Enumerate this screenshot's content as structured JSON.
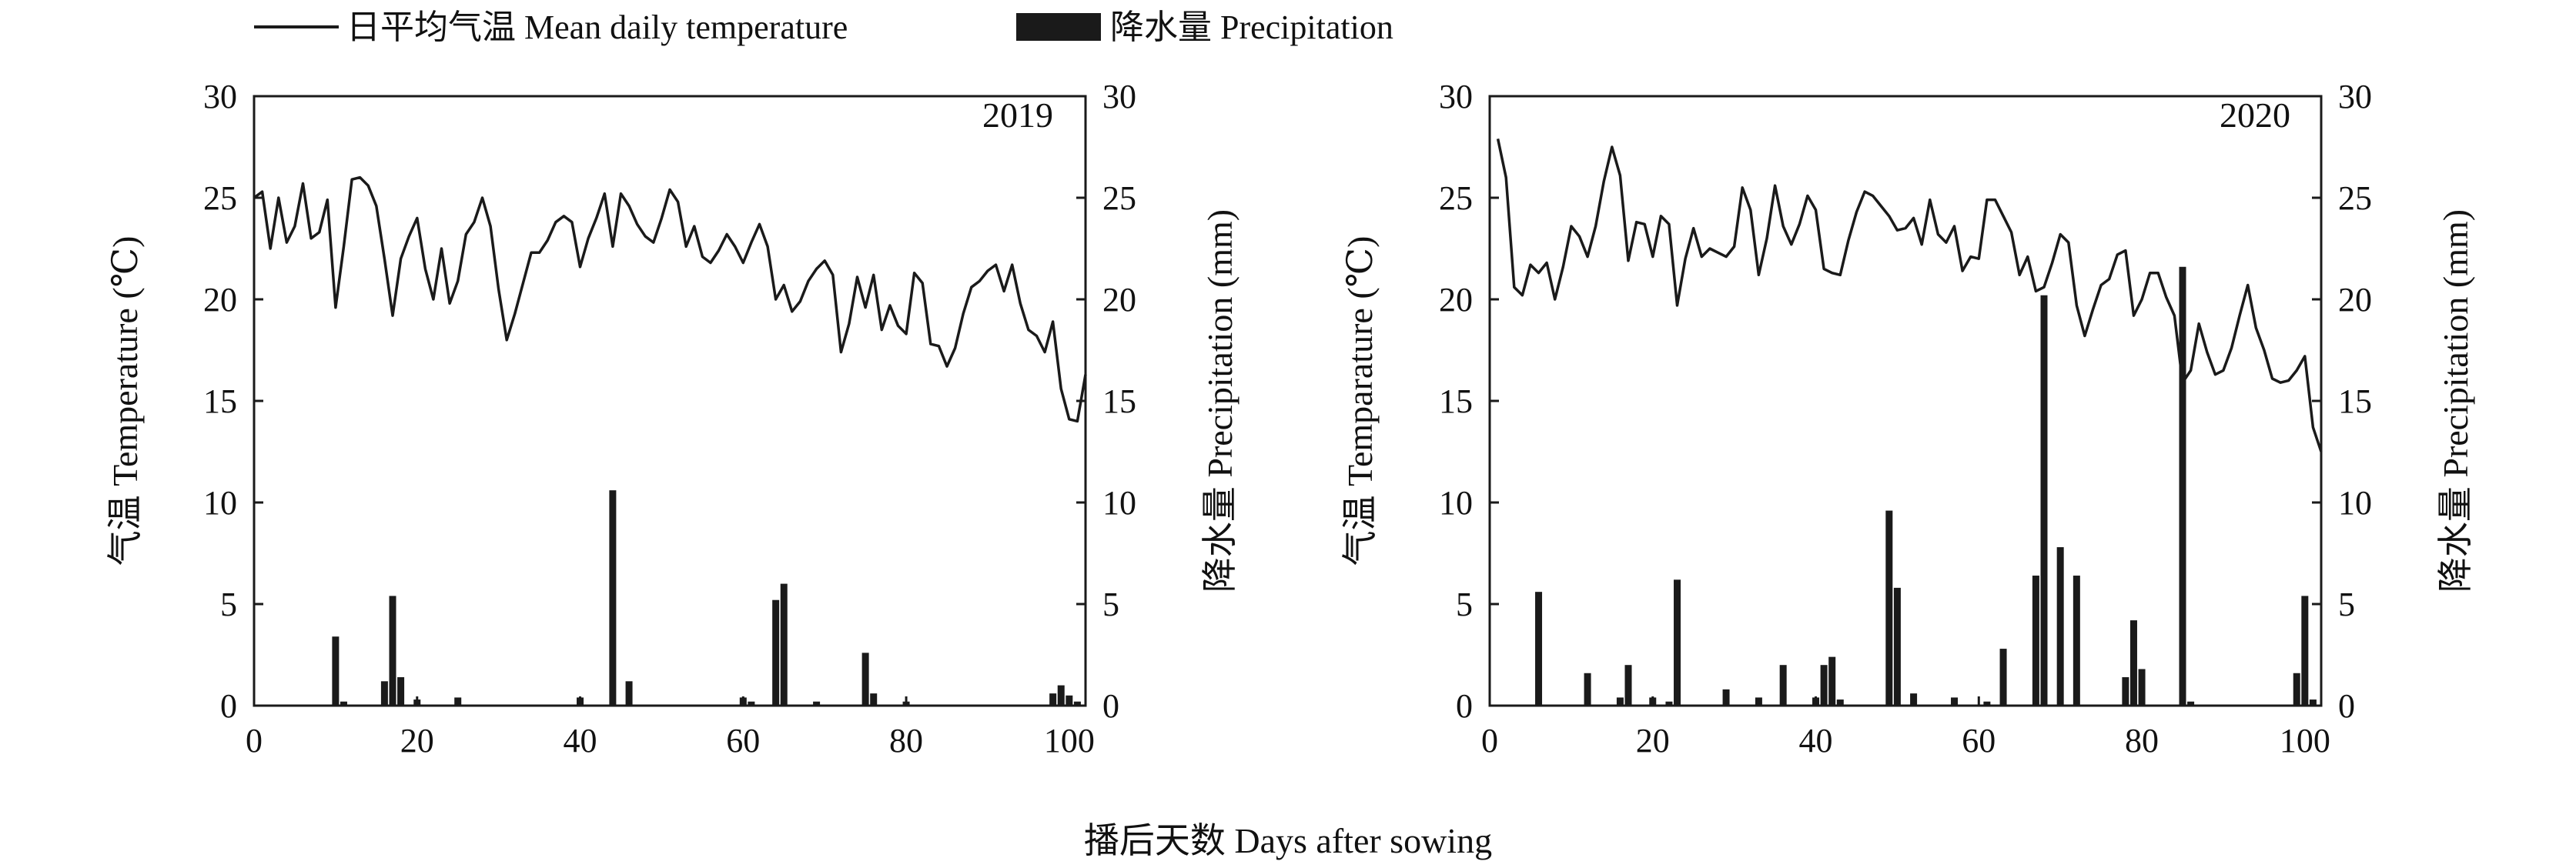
{
  "legend": {
    "temperature_label": "日平均气温 Mean daily temperature",
    "precipitation_label": "降水量 Precipitation"
  },
  "xlabel": "播后天数 Days after sowing",
  "colors": {
    "line": "#1a1a1a",
    "bar": "#1a1a1a",
    "axis": "#1a1a1a"
  },
  "chart_data": [
    {
      "type": "line",
      "title": "2019",
      "ylabel_left": "气温 Temperature (℃)",
      "ylabel_right": "降水量 Precipitation (mm)",
      "xlim": [
        0,
        102
      ],
      "ylim": [
        0,
        30
      ],
      "xticks": [
        0,
        20,
        40,
        60,
        80,
        100
      ],
      "yticks": [
        0,
        5,
        10,
        15,
        20,
        25,
        30
      ],
      "series": [
        {
          "name": "日平均气温 Mean daily temperature",
          "type": "line",
          "axis": "left",
          "points": [
            [
              0,
              25.0
            ],
            [
              1,
              25.3
            ],
            [
              2,
              22.5
            ],
            [
              3,
              25.0
            ],
            [
              4,
              22.8
            ],
            [
              5,
              23.6
            ],
            [
              6,
              25.7
            ],
            [
              7,
              23.0
            ],
            [
              8,
              23.3
            ],
            [
              9,
              24.9
            ],
            [
              10,
              19.6
            ],
            [
              11,
              22.6
            ],
            [
              12,
              25.9
            ],
            [
              13,
              26.0
            ],
            [
              14,
              25.6
            ],
            [
              15,
              24.6
            ],
            [
              16,
              22.0
            ],
            [
              17,
              19.2
            ],
            [
              18,
              22.0
            ],
            [
              19,
              23.1
            ],
            [
              20,
              24.0
            ],
            [
              21,
              21.5
            ],
            [
              22,
              20.0
            ],
            [
              23,
              22.5
            ],
            [
              24,
              19.8
            ],
            [
              25,
              20.9
            ],
            [
              26,
              23.2
            ],
            [
              27,
              23.8
            ],
            [
              28,
              25.0
            ],
            [
              29,
              23.6
            ],
            [
              30,
              20.5
            ],
            [
              31,
              18.0
            ],
            [
              32,
              19.3
            ],
            [
              33,
              20.8
            ],
            [
              34,
              22.3
            ],
            [
              35,
              22.3
            ],
            [
              36,
              22.9
            ],
            [
              37,
              23.8
            ],
            [
              38,
              24.1
            ],
            [
              39,
              23.8
            ],
            [
              40,
              21.6
            ],
            [
              41,
              23.0
            ],
            [
              42,
              24.0
            ],
            [
              43,
              25.2
            ],
            [
              44,
              22.6
            ],
            [
              45,
              25.2
            ],
            [
              46,
              24.6
            ],
            [
              47,
              23.7
            ],
            [
              48,
              23.1
            ],
            [
              49,
              22.8
            ],
            [
              50,
              24.0
            ],
            [
              51,
              25.4
            ],
            [
              52,
              24.8
            ],
            [
              53,
              22.6
            ],
            [
              54,
              23.6
            ],
            [
              55,
              22.1
            ],
            [
              56,
              21.8
            ],
            [
              57,
              22.4
            ],
            [
              58,
              23.2
            ],
            [
              59,
              22.6
            ],
            [
              60,
              21.8
            ],
            [
              61,
              22.8
            ],
            [
              62,
              23.7
            ],
            [
              63,
              22.6
            ],
            [
              64,
              20.0
            ],
            [
              65,
              20.7
            ],
            [
              66,
              19.4
            ],
            [
              67,
              19.9
            ],
            [
              68,
              20.9
            ],
            [
              69,
              21.5
            ],
            [
              70,
              21.9
            ],
            [
              71,
              21.2
            ],
            [
              72,
              17.4
            ],
            [
              73,
              18.8
            ],
            [
              74,
              21.1
            ],
            [
              75,
              19.6
            ],
            [
              76,
              21.2
            ],
            [
              77,
              18.5
            ],
            [
              78,
              19.7
            ],
            [
              79,
              18.7
            ],
            [
              80,
              18.3
            ],
            [
              81,
              21.3
            ],
            [
              82,
              20.8
            ],
            [
              83,
              17.8
            ],
            [
              84,
              17.7
            ],
            [
              85,
              16.7
            ],
            [
              86,
              17.6
            ],
            [
              87,
              19.3
            ],
            [
              88,
              20.6
            ],
            [
              89,
              20.9
            ],
            [
              90,
              21.4
            ],
            [
              91,
              21.7
            ],
            [
              92,
              20.4
            ],
            [
              93,
              21.7
            ],
            [
              94,
              19.8
            ],
            [
              95,
              18.5
            ],
            [
              96,
              18.2
            ],
            [
              97,
              17.4
            ],
            [
              98,
              18.9
            ],
            [
              99,
              15.6
            ],
            [
              100,
              14.1
            ],
            [
              101,
              14.0
            ],
            [
              102,
              16.3
            ]
          ]
        },
        {
          "name": "降水量 Precipitation",
          "type": "bar",
          "axis": "right",
          "points": [
            [
              10,
              3.4
            ],
            [
              11,
              0.2
            ],
            [
              16,
              1.2
            ],
            [
              17,
              5.4
            ],
            [
              18,
              1.4
            ],
            [
              20,
              0.3
            ],
            [
              25,
              0.4
            ],
            [
              40,
              0.4
            ],
            [
              44,
              10.6
            ],
            [
              46,
              1.2
            ],
            [
              60,
              0.4
            ],
            [
              61,
              0.2
            ],
            [
              64,
              5.2
            ],
            [
              65,
              6.0
            ],
            [
              69,
              0.2
            ],
            [
              75,
              2.6
            ],
            [
              76,
              0.6
            ],
            [
              80,
              0.2
            ],
            [
              98,
              0.6
            ],
            [
              99,
              1.0
            ],
            [
              100,
              0.5
            ],
            [
              101,
              0.2
            ]
          ]
        }
      ]
    },
    {
      "type": "line",
      "title": "2020",
      "ylabel_left": "气温 Temparature (℃)",
      "ylabel_right": "降水量 Precipitation (mm)",
      "xlim": [
        0,
        102
      ],
      "ylim": [
        0,
        30
      ],
      "xticks": [
        0,
        20,
        40,
        60,
        80,
        100
      ],
      "yticks": [
        0,
        5,
        10,
        15,
        20,
        25,
        30
      ],
      "series": [
        {
          "name": "日平均气温 Mean daily temperature",
          "type": "line",
          "axis": "left",
          "points": [
            [
              1,
              27.9
            ],
            [
              2,
              26.0
            ],
            [
              3,
              20.6
            ],
            [
              4,
              20.2
            ],
            [
              5,
              21.7
            ],
            [
              6,
              21.3
            ],
            [
              7,
              21.8
            ],
            [
              8,
              20.0
            ],
            [
              9,
              21.6
            ],
            [
              10,
              23.6
            ],
            [
              11,
              23.1
            ],
            [
              12,
              22.1
            ],
            [
              13,
              23.6
            ],
            [
              14,
              25.8
            ],
            [
              15,
              27.5
            ],
            [
              16,
              26.1
            ],
            [
              17,
              21.9
            ],
            [
              18,
              23.8
            ],
            [
              19,
              23.7
            ],
            [
              20,
              22.1
            ],
            [
              21,
              24.1
            ],
            [
              22,
              23.7
            ],
            [
              23,
              19.7
            ],
            [
              24,
              22.0
            ],
            [
              25,
              23.5
            ],
            [
              26,
              22.1
            ],
            [
              27,
              22.5
            ],
            [
              28,
              22.3
            ],
            [
              29,
              22.1
            ],
            [
              30,
              22.6
            ],
            [
              31,
              25.5
            ],
            [
              32,
              24.4
            ],
            [
              33,
              21.2
            ],
            [
              34,
              23.0
            ],
            [
              35,
              25.6
            ],
            [
              36,
              23.6
            ],
            [
              37,
              22.7
            ],
            [
              38,
              23.7
            ],
            [
              39,
              25.1
            ],
            [
              40,
              24.4
            ],
            [
              41,
              21.5
            ],
            [
              42,
              21.3
            ],
            [
              43,
              21.2
            ],
            [
              44,
              22.9
            ],
            [
              45,
              24.3
            ],
            [
              46,
              25.3
            ],
            [
              47,
              25.1
            ],
            [
              48,
              24.6
            ],
            [
              49,
              24.1
            ],
            [
              50,
              23.4
            ],
            [
              51,
              23.5
            ],
            [
              52,
              24.0
            ],
            [
              53,
              22.7
            ],
            [
              54,
              24.9
            ],
            [
              55,
              23.2
            ],
            [
              56,
              22.8
            ],
            [
              57,
              23.6
            ],
            [
              58,
              21.4
            ],
            [
              59,
              22.1
            ],
            [
              60,
              22.0
            ],
            [
              61,
              24.9
            ],
            [
              62,
              24.9
            ],
            [
              63,
              24.1
            ],
            [
              64,
              23.3
            ],
            [
              65,
              21.2
            ],
            [
              66,
              22.1
            ],
            [
              67,
              20.4
            ],
            [
              68,
              20.6
            ],
            [
              69,
              21.8
            ],
            [
              70,
              23.2
            ],
            [
              71,
              22.8
            ],
            [
              72,
              19.7
            ],
            [
              73,
              18.2
            ],
            [
              74,
              19.5
            ],
            [
              75,
              20.7
            ],
            [
              76,
              21.0
            ],
            [
              77,
              22.2
            ],
            [
              78,
              22.4
            ],
            [
              79,
              19.2
            ],
            [
              80,
              20.0
            ],
            [
              81,
              21.3
            ],
            [
              82,
              21.3
            ],
            [
              83,
              20.1
            ],
            [
              84,
              19.2
            ],
            [
              85,
              15.9
            ],
            [
              86,
              16.5
            ],
            [
              87,
              18.8
            ],
            [
              88,
              17.4
            ],
            [
              89,
              16.3
            ],
            [
              90,
              16.5
            ],
            [
              91,
              17.6
            ],
            [
              92,
              19.2
            ],
            [
              93,
              20.7
            ],
            [
              94,
              18.6
            ],
            [
              95,
              17.5
            ],
            [
              96,
              16.1
            ],
            [
              97,
              15.9
            ],
            [
              98,
              16.0
            ],
            [
              99,
              16.5
            ],
            [
              100,
              17.2
            ],
            [
              101,
              13.7
            ],
            [
              102,
              12.5
            ]
          ]
        },
        {
          "name": "降水量 Precipitation",
          "type": "bar",
          "axis": "right",
          "points": [
            [
              6,
              5.6
            ],
            [
              12,
              1.6
            ],
            [
              16,
              0.4
            ],
            [
              17,
              2.0
            ],
            [
              20,
              0.4
            ],
            [
              22,
              0.2
            ],
            [
              23,
              6.2
            ],
            [
              29,
              0.8
            ],
            [
              33,
              0.4
            ],
            [
              36,
              2.0
            ],
            [
              40,
              0.4
            ],
            [
              41,
              2.0
            ],
            [
              42,
              2.4
            ],
            [
              43,
              0.3
            ],
            [
              49,
              9.6
            ],
            [
              50,
              5.8
            ],
            [
              52,
              0.6
            ],
            [
              57,
              0.4
            ],
            [
              61,
              0.2
            ],
            [
              63,
              2.8
            ],
            [
              67,
              6.4
            ],
            [
              68,
              20.2
            ],
            [
              70,
              7.8
            ],
            [
              72,
              6.4
            ],
            [
              78,
              1.4
            ],
            [
              79,
              4.2
            ],
            [
              80,
              1.8
            ],
            [
              85,
              21.6
            ],
            [
              86,
              0.2
            ],
            [
              99,
              1.6
            ],
            [
              100,
              5.4
            ],
            [
              101,
              0.3
            ]
          ]
        }
      ]
    }
  ]
}
